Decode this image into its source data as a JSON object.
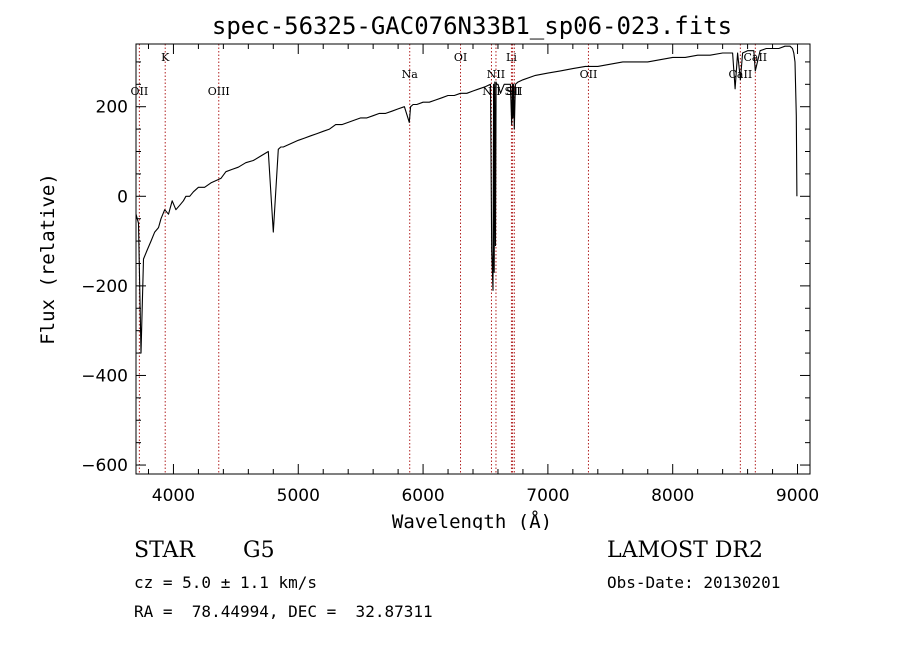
{
  "chart_data": {
    "type": "line",
    "title": "spec-56325-GAC076N33B1_sp06-023.fits",
    "xlabel": "Wavelength (Å)",
    "ylabel": "Flux (relative)",
    "xlim": [
      3700,
      9100
    ],
    "ylim": [
      -620,
      340
    ],
    "xticks": [
      4000,
      5000,
      6000,
      7000,
      8000,
      9000
    ],
    "yticks": [
      -600,
      -400,
      -200,
      0,
      200
    ],
    "line_color": "#000000",
    "marker_color": "#b22222",
    "series": [
      {
        "x": [
          3700,
          3720,
          3740,
          3760,
          3790,
          3820,
          3850,
          3880,
          3900,
          3930,
          3960,
          3990,
          4020,
          4050,
          4080,
          4100,
          4130,
          4160,
          4200,
          4250,
          4300,
          4340,
          4380,
          4420,
          4470,
          4520,
          4580,
          4640,
          4700,
          4760,
          4800,
          4840,
          4860,
          4880,
          4920,
          4960,
          5000,
          5050,
          5100,
          5150,
          5200,
          5250,
          5300,
          5350,
          5400,
          5450,
          5500,
          5550,
          5600,
          5650,
          5700,
          5750,
          5800,
          5850,
          5890,
          5900,
          5920,
          5950,
          6000,
          6050,
          6100,
          6150,
          6200,
          6250,
          6300,
          6350,
          6400,
          6450,
          6500,
          6540,
          6550,
          6560,
          6565,
          6570,
          6575,
          6580,
          6585,
          6590,
          6600,
          6620,
          6650,
          6680,
          6700,
          6710,
          6716,
          6720,
          6725,
          6731,
          6740,
          6760,
          6800,
          6900,
          7000,
          7100,
          7200,
          7300,
          7400,
          7500,
          7600,
          7700,
          7800,
          7900,
          8000,
          8100,
          8200,
          8300,
          8400,
          8480,
          8500,
          8520,
          8542,
          8560,
          8600,
          8650,
          8662,
          8700,
          8750,
          8800,
          8850,
          8900,
          8940,
          8960,
          8970,
          8980,
          8990,
          8995
        ],
        "y": [
          -40,
          -60,
          -350,
          -140,
          -120,
          -100,
          -80,
          -70,
          -50,
          -30,
          -40,
          -10,
          -30,
          -20,
          -10,
          0,
          0,
          10,
          20,
          20,
          30,
          35,
          40,
          55,
          60,
          65,
          75,
          80,
          90,
          100,
          -80,
          105,
          110,
          110,
          115,
          120,
          125,
          130,
          135,
          140,
          145,
          150,
          160,
          160,
          165,
          170,
          175,
          175,
          180,
          185,
          185,
          190,
          195,
          200,
          165,
          200,
          205,
          205,
          210,
          210,
          215,
          220,
          225,
          225,
          230,
          230,
          235,
          240,
          245,
          250,
          -120,
          -210,
          250,
          -170,
          255,
          -110,
          255,
          250,
          250,
          230,
          250,
          250,
          250,
          160,
          250,
          175,
          250,
          150,
          250,
          255,
          260,
          270,
          275,
          280,
          285,
          290,
          290,
          295,
          300,
          300,
          300,
          305,
          310,
          310,
          315,
          315,
          320,
          320,
          240,
          320,
          260,
          320,
          325,
          325,
          280,
          325,
          330,
          330,
          330,
          335,
          335,
          330,
          320,
          300,
          180,
          0
        ]
      }
    ],
    "line_markers": [
      {
        "label": "OII",
        "x": 3727,
        "row": "low"
      },
      {
        "label": "K",
        "x": 3934,
        "row": "high"
      },
      {
        "label": "OIII",
        "x": 4363,
        "row": "low"
      },
      {
        "label": "Na",
        "x": 5893,
        "row": "mid"
      },
      {
        "label": "OI",
        "x": 6300,
        "row": "high"
      },
      {
        "label": "NII",
        "x": 6548,
        "row": "low"
      },
      {
        "label": "NII",
        "x": 6584,
        "row": "mid"
      },
      {
        "label": "Li",
        "x": 6708,
        "row": "high"
      },
      {
        "label": "SII",
        "x": 6717,
        "row": "low"
      },
      {
        "label": "SII",
        "x": 6731,
        "row": "low"
      },
      {
        "label": "OII",
        "x": 7325,
        "row": "mid"
      },
      {
        "label": "CaII",
        "x": 8542,
        "row": "mid"
      },
      {
        "label": "CaII",
        "x": 8662,
        "row": "high"
      }
    ]
  },
  "footer": {
    "object_type": "STAR",
    "subclass": "G5",
    "survey": "LAMOST DR2",
    "velocity": "cz = 5.0 ± 1.1 km/s",
    "obs_date": "Obs-Date: 20130201",
    "coords": "RA =  78.44994, DEC =  32.87311"
  }
}
